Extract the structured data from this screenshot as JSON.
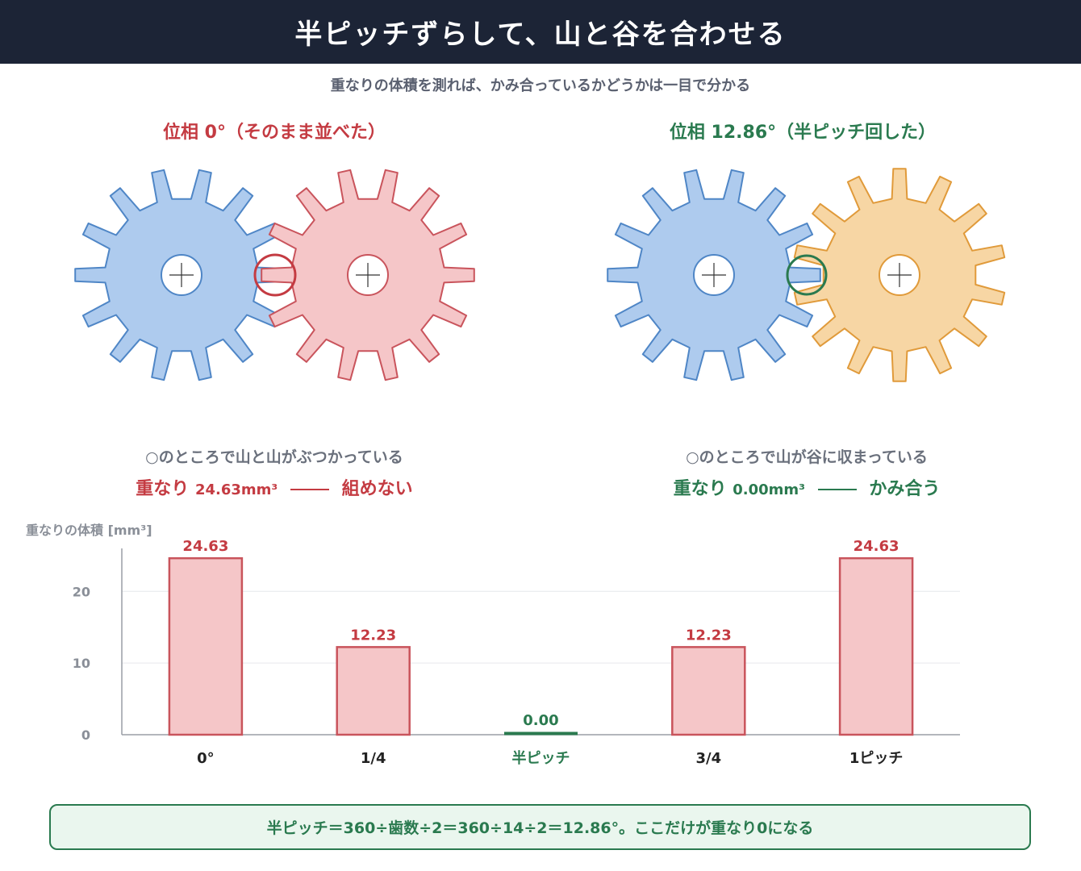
{
  "header": {
    "title": "半ピッチずらして、山と谷を合わせる"
  },
  "subtitle": "重なりの体積を測れば、かみ合っているかどうかは一目で分かる",
  "left_panel": {
    "title": "位相 0°（そのまま並べた）",
    "caption": "○のところで山と山がぶつかっている",
    "verdict_prefix": "重なり",
    "verdict_value": "24.63mm³",
    "verdict_suffix": "組めない",
    "color": "#c43b42",
    "gear_a": {
      "fill": "#aecbee",
      "stroke": "#4f86c6",
      "teeth": 14,
      "phase_deg": 0
    },
    "gear_b": {
      "fill": "#f5c6c8",
      "stroke": "#c9545c",
      "teeth": 14,
      "phase_deg": 0
    }
  },
  "right_panel": {
    "title": "位相 12.86°（半ピッチ回した）",
    "caption": "○のところで山が谷に収まっている",
    "verdict_prefix": "重なり",
    "verdict_value": "0.00mm³",
    "verdict_suffix": "かみ合う",
    "color": "#2a7a4f",
    "gear_a": {
      "fill": "#aecbee",
      "stroke": "#4f86c6",
      "teeth": 14,
      "phase_deg": 0
    },
    "gear_b": {
      "fill": "#f7d6a4",
      "stroke": "#e09a3a",
      "teeth": 14,
      "phase_deg": 12.86
    }
  },
  "chart_data": {
    "type": "bar",
    "ylabel": "重なりの体積 [mm³]",
    "categories": [
      "0°",
      "1/4",
      "半ピッチ",
      "3/4",
      "1ピッチ"
    ],
    "values": [
      24.63,
      12.23,
      0.0,
      12.23,
      24.63
    ],
    "value_labels": [
      "24.63",
      "12.23",
      "0.00",
      "12.23",
      "24.63"
    ],
    "ylim": [
      0,
      26
    ],
    "yticks": [
      0,
      10,
      20
    ],
    "grid": true,
    "highlight_index": 2,
    "colors": {
      "bar_fill": "#f5c6c8",
      "bar_stroke": "#c9545c",
      "value_label": "#c43b42",
      "highlight": "#2a7a4f"
    }
  },
  "footer": {
    "text": "半ピッチ＝360÷歯数÷2＝360÷14÷2＝12.86°。ここだけが重なり0になる"
  }
}
